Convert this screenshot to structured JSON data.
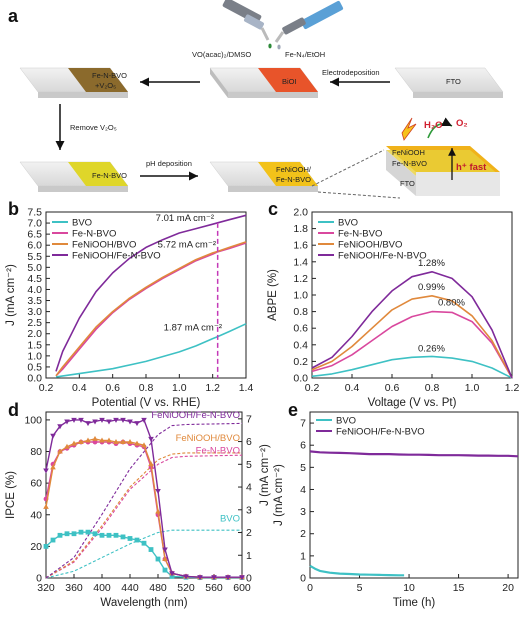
{
  "panel_labels": [
    "a",
    "b",
    "c",
    "d",
    "e"
  ],
  "schematic": {
    "fto": "FTO",
    "biol": "BiOI",
    "fenbvo_v2o5": [
      "Fe-N-BVO",
      "+V₂O₅"
    ],
    "fenbvo": "Fe-N-BVO",
    "feniooh_fenbvo": [
      "FeNiOOH/",
      "Fe-N-BVO"
    ],
    "pipette_left": "VO(acac)₂/DMSO",
    "pipette_right": "Fe-N₄/EtOH",
    "step_electrodeposition": "Electrodeposition",
    "step_remove": "Remove V₂O₅",
    "step_ph": "pH deposition",
    "layer_feniooh": "FeNiOOH",
    "layer_fenbvo": "Fe-N-BVO",
    "layer_fto": "FTO",
    "h2o": "H₂O",
    "o2": "O₂",
    "hfast": "h⁺ fast"
  },
  "colors": {
    "BVO": "#3ec1c4",
    "Fe-N-BVO": "#d9489e",
    "FeNiOOH/BVO": "#e0893c",
    "FeNiOOH/Fe-N-BVO": "#7f2a9a",
    "marker_line": "#c43ab8"
  },
  "chart_data": [
    {
      "panel": "b",
      "type": "line",
      "xlabel": "Potential (V vs. RHE)",
      "ylabel": "J (mA cm⁻²)",
      "xlim": [
        0.2,
        1.4
      ],
      "ylim": [
        0,
        7.5
      ],
      "xticks": [
        "0.2",
        "0.4",
        "0.6",
        "0.8",
        "1.0",
        "1.2",
        "1.4"
      ],
      "yticks": [
        "0.0",
        "0.5",
        "1.0",
        "1.5",
        "2.0",
        "2.5",
        "3.0",
        "3.5",
        "4.0",
        "4.5",
        "5.0",
        "5.5",
        "6.0",
        "6.5",
        "7.0",
        "7.5"
      ],
      "legend_position": "top-left",
      "series": [
        {
          "name": "BVO",
          "x": [
            0.26,
            0.4,
            0.6,
            0.8,
            1.0,
            1.1,
            1.2,
            1.23,
            1.3,
            1.4
          ],
          "y": [
            0.05,
            0.2,
            0.42,
            0.75,
            1.18,
            1.45,
            1.78,
            1.87,
            2.1,
            2.45
          ]
        },
        {
          "name": "Fe-N-BVO",
          "x": [
            0.26,
            0.3,
            0.4,
            0.5,
            0.6,
            0.7,
            0.8,
            0.9,
            1.0,
            1.1,
            1.2,
            1.23,
            1.3,
            1.4
          ],
          "y": [
            0.1,
            0.4,
            1.3,
            2.2,
            2.95,
            3.55,
            4.05,
            4.5,
            4.9,
            5.3,
            5.6,
            5.7,
            5.85,
            6.1
          ]
        },
        {
          "name": "FeNiOOH/BVO",
          "x": [
            0.26,
            0.3,
            0.4,
            0.5,
            0.6,
            0.7,
            0.8,
            0.9,
            1.0,
            1.1,
            1.2,
            1.23,
            1.3,
            1.4
          ],
          "y": [
            0.1,
            0.5,
            1.4,
            2.3,
            3.0,
            3.6,
            4.1,
            4.55,
            4.95,
            5.35,
            5.65,
            5.72,
            5.9,
            6.15
          ]
        },
        {
          "name": "FeNiOOH/Fe-N-BVO",
          "x": [
            0.26,
            0.3,
            0.4,
            0.5,
            0.6,
            0.7,
            0.8,
            0.9,
            1.0,
            1.1,
            1.2,
            1.23,
            1.3,
            1.4
          ],
          "y": [
            0.3,
            1.2,
            2.7,
            3.9,
            4.75,
            5.4,
            5.9,
            6.25,
            6.55,
            6.75,
            6.95,
            7.01,
            7.15,
            7.35
          ]
        }
      ],
      "vline_x": 1.23,
      "annotations": [
        {
          "text": "7.01 mA cm⁻²",
          "x": 1.23,
          "y": 7.01
        },
        {
          "text": "5.72 mA cm⁻²",
          "x": 1.23,
          "y": 5.72
        },
        {
          "text": "1.87 mA cm⁻²",
          "x": 1.23,
          "y": 1.87
        }
      ]
    },
    {
      "panel": "c",
      "type": "line",
      "xlabel": "Voltage (V vs. Pt)",
      "ylabel": "ABPE (%)",
      "xlim": [
        0.2,
        1.2
      ],
      "ylim": [
        0,
        2.0
      ],
      "xticks": [
        "0.2",
        "0.4",
        "0.6",
        "0.8",
        "1.0",
        "1.2"
      ],
      "yticks": [
        "0.0",
        "0.2",
        "0.4",
        "0.6",
        "0.8",
        "1.0",
        "1.2",
        "1.4",
        "1.6",
        "1.8",
        "2.0"
      ],
      "legend_position": "top-left",
      "series": [
        {
          "name": "BVO",
          "x": [
            0.2,
            0.3,
            0.4,
            0.5,
            0.6,
            0.7,
            0.8,
            0.9,
            1.0,
            1.1,
            1.2
          ],
          "y": [
            0.02,
            0.05,
            0.1,
            0.16,
            0.22,
            0.25,
            0.26,
            0.24,
            0.2,
            0.12,
            0.0
          ]
        },
        {
          "name": "Fe-N-BVO",
          "x": [
            0.2,
            0.3,
            0.4,
            0.5,
            0.6,
            0.7,
            0.8,
            0.9,
            1.0,
            1.1,
            1.2
          ],
          "y": [
            0.08,
            0.15,
            0.28,
            0.45,
            0.62,
            0.74,
            0.8,
            0.79,
            0.68,
            0.42,
            0.0
          ]
        },
        {
          "name": "FeNiOOH/BVO",
          "x": [
            0.2,
            0.3,
            0.4,
            0.5,
            0.6,
            0.7,
            0.8,
            0.9,
            1.0,
            1.1,
            1.2
          ],
          "y": [
            0.1,
            0.2,
            0.38,
            0.6,
            0.82,
            0.95,
            0.99,
            0.93,
            0.75,
            0.45,
            0.0
          ]
        },
        {
          "name": "FeNiOOH/Fe-N-BVO",
          "x": [
            0.2,
            0.3,
            0.4,
            0.5,
            0.6,
            0.7,
            0.8,
            0.9,
            1.0,
            1.1,
            1.2
          ],
          "y": [
            0.12,
            0.25,
            0.5,
            0.8,
            1.05,
            1.22,
            1.28,
            1.2,
            0.98,
            0.58,
            0.0
          ]
        }
      ],
      "annotations": [
        {
          "text": "1.28%",
          "x": 0.8,
          "y": 1.28
        },
        {
          "text": "0.99%",
          "x": 0.8,
          "y": 0.99
        },
        {
          "text": "0.80%",
          "x": 0.88,
          "y": 0.8
        },
        {
          "text": "0.26%",
          "x": 0.8,
          "y": 0.26
        }
      ]
    },
    {
      "panel": "d",
      "type": "line",
      "xlabel": "Wavelength (nm)",
      "ylabel": "IPCE (%)",
      "y2label": "J (mA cm⁻²)",
      "xlim": [
        320,
        600
      ],
      "ylim": [
        0,
        105
      ],
      "y2lim": [
        0,
        7.3
      ],
      "xticks": [
        "320",
        "360",
        "400",
        "440",
        "480",
        "520",
        "560",
        "600"
      ],
      "yticks": [
        "0",
        "20",
        "40",
        "60",
        "80",
        "100"
      ],
      "y2ticks": [
        "0",
        "1",
        "2",
        "3",
        "4",
        "5",
        "6",
        "7"
      ],
      "series": [
        {
          "name": "BVO",
          "x": [
            320,
            330,
            340,
            350,
            360,
            370,
            380,
            390,
            400,
            410,
            420,
            430,
            440,
            450,
            460,
            470,
            480,
            490,
            500,
            520,
            540,
            560,
            580,
            600
          ],
          "y": [
            20,
            24,
            27,
            28,
            28,
            29,
            29,
            28,
            27,
            27,
            27,
            26,
            25,
            24,
            22,
            18,
            12,
            5,
            1,
            0.5,
            0.3,
            0.3,
            0.3,
            0.3
          ]
        },
        {
          "name": "Fe-N-BVO",
          "x": [
            320,
            330,
            340,
            350,
            360,
            370,
            380,
            390,
            400,
            410,
            420,
            430,
            440,
            450,
            460,
            470,
            480,
            490,
            500,
            520,
            540,
            560,
            580,
            600
          ],
          "y": [
            50,
            72,
            80,
            82,
            84,
            86,
            86,
            86,
            86,
            86,
            85,
            86,
            85,
            84,
            83,
            70,
            40,
            12,
            3,
            1,
            0.5,
            0.5,
            0.5,
            0.5
          ]
        },
        {
          "name": "FeNiOOH/BVO",
          "x": [
            320,
            330,
            340,
            350,
            360,
            370,
            380,
            390,
            400,
            410,
            420,
            430,
            440,
            450,
            460,
            470,
            480,
            490,
            500,
            520,
            540,
            560,
            580,
            600
          ],
          "y": [
            45,
            70,
            80,
            83,
            85,
            86,
            87,
            88,
            87,
            87,
            86,
            86,
            86,
            85,
            84,
            72,
            42,
            12,
            3,
            1,
            0.5,
            0.5,
            0.5,
            0.5
          ]
        },
        {
          "name": "FeNiOOH/Fe-N-BVO",
          "x": [
            320,
            330,
            340,
            350,
            360,
            370,
            380,
            390,
            400,
            410,
            420,
            430,
            440,
            450,
            460,
            470,
            480,
            490,
            500,
            520,
            540,
            560,
            580,
            600
          ],
          "y": [
            68,
            90,
            96,
            99,
            100,
            100,
            98,
            99,
            100,
            99,
            100,
            100,
            99,
            98,
            100,
            88,
            55,
            18,
            3,
            1,
            0.5,
            0.5,
            0.5,
            0.5
          ]
        }
      ],
      "integrated_current": [
        {
          "name": "BVO",
          "x": [
            320,
            360,
            400,
            440,
            480,
            500,
            600
          ],
          "y2": [
            0,
            0.3,
            0.9,
            1.5,
            2.0,
            2.1,
            2.1
          ]
        },
        {
          "name": "Fe-N-BVO",
          "x": [
            320,
            360,
            400,
            440,
            480,
            500,
            520,
            600
          ],
          "y2": [
            0,
            0.7,
            2.2,
            3.9,
            5.0,
            5.3,
            5.35,
            5.4
          ]
        },
        {
          "name": "FeNiOOH/BVO",
          "x": [
            320,
            360,
            400,
            440,
            480,
            500,
            520,
            600
          ],
          "y2": [
            0,
            0.75,
            2.3,
            4.0,
            5.2,
            5.45,
            5.5,
            5.5
          ]
        },
        {
          "name": "FeNiOOH/Fe-N-BVO",
          "x": [
            320,
            360,
            400,
            440,
            480,
            500,
            520,
            600
          ],
          "y2": [
            0,
            0.9,
            2.8,
            4.8,
            6.3,
            6.7,
            6.75,
            6.8
          ]
        }
      ],
      "labels": [
        {
          "text": "FeNiOOH/Fe-N-BVO",
          "series": "FeNiOOH/Fe-N-BVO"
        },
        {
          "text": "FeNiOOH/BVO",
          "series": "FeNiOOH/BVO"
        },
        {
          "text": "Fe-N-BVO",
          "series": "Fe-N-BVO"
        },
        {
          "text": "BVO",
          "series": "BVO"
        }
      ]
    },
    {
      "panel": "e",
      "type": "line",
      "xlabel": "Time (h)",
      "ylabel": "J (mA cm⁻²)",
      "xlim": [
        0,
        21
      ],
      "ylim": [
        0,
        7.5
      ],
      "xticks": [
        "0",
        "5",
        "10",
        "15",
        "20"
      ],
      "yticks": [
        "0",
        "1",
        "2",
        "3",
        "4",
        "5",
        "6",
        "7"
      ],
      "legend_position": "top-left",
      "series": [
        {
          "name": "BVO",
          "x": [
            0,
            0.5,
            1,
            2,
            3,
            4,
            5,
            6,
            7,
            8,
            9,
            9.5
          ],
          "y": [
            0.55,
            0.42,
            0.32,
            0.24,
            0.2,
            0.18,
            0.16,
            0.15,
            0.14,
            0.13,
            0.12,
            0.12
          ]
        },
        {
          "name": "FeNiOOH/Fe-N-BVO",
          "x": [
            0,
            1,
            2,
            3,
            4,
            5,
            6,
            7,
            8,
            9,
            10,
            11,
            12,
            13,
            14,
            15,
            16,
            17,
            18,
            19,
            20,
            21
          ],
          "y": [
            5.72,
            5.68,
            5.66,
            5.65,
            5.64,
            5.62,
            5.6,
            5.6,
            5.6,
            5.58,
            5.57,
            5.57,
            5.56,
            5.55,
            5.55,
            5.55,
            5.54,
            5.53,
            5.53,
            5.52,
            5.52,
            5.5
          ]
        }
      ]
    }
  ]
}
